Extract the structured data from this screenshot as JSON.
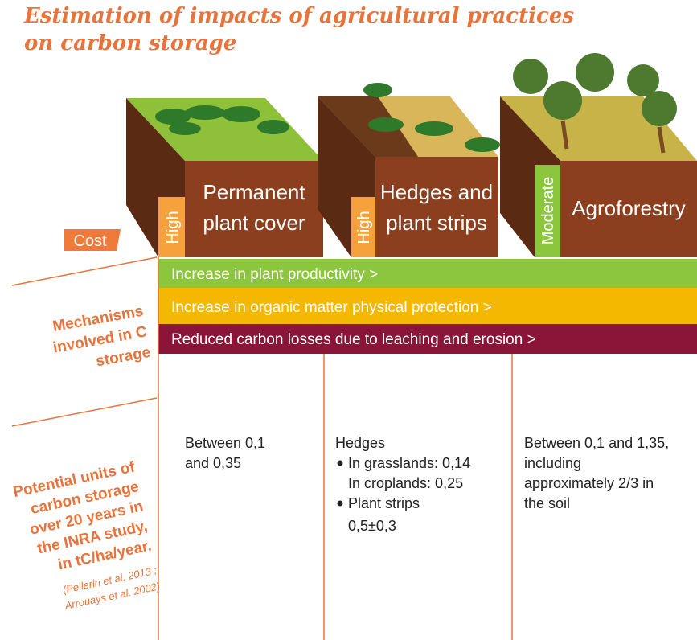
{
  "title": [
    "Estimation of impacts of agricultural practices",
    "on carbon storage"
  ],
  "cost_label": "Cost",
  "practices": [
    {
      "name": [
        "Permanent",
        "plant cover"
      ],
      "cost": "High"
    },
    {
      "name": [
        "Hedges and",
        "plant strips"
      ],
      "cost": "High"
    },
    {
      "name": [
        "Agroforestry"
      ],
      "cost": "Moderate"
    }
  ],
  "mechanisms_label": [
    "Mechanisms",
    "involved in C",
    "storage"
  ],
  "mechanisms": [
    "Increase in plant productivity >",
    "Increase in organic matter physical protection >",
    "Reduced carbon losses due to leaching and erosion >"
  ],
  "potential_label": [
    "Potential units of",
    "carbon storage",
    "over 20 years in",
    "the INRA study,",
    "in tC/ha/year."
  ],
  "citation": [
    "(Pellerin et al. 2013 ;",
    "Arrouays et al. 2002)"
  ],
  "potential": {
    "col1": [
      "Between 0,1",
      "and 0,35"
    ],
    "col2": {
      "heading": "Hedges",
      "items": [
        [
          "In grasslands: 0,14",
          "In croplands: 0,25"
        ],
        [
          "Plant strips",
          "0,5±0,3"
        ]
      ]
    },
    "col3": [
      "Between 0,1 and 1,35,",
      "including",
      "approximately 2/3 in",
      "the soil"
    ]
  }
}
